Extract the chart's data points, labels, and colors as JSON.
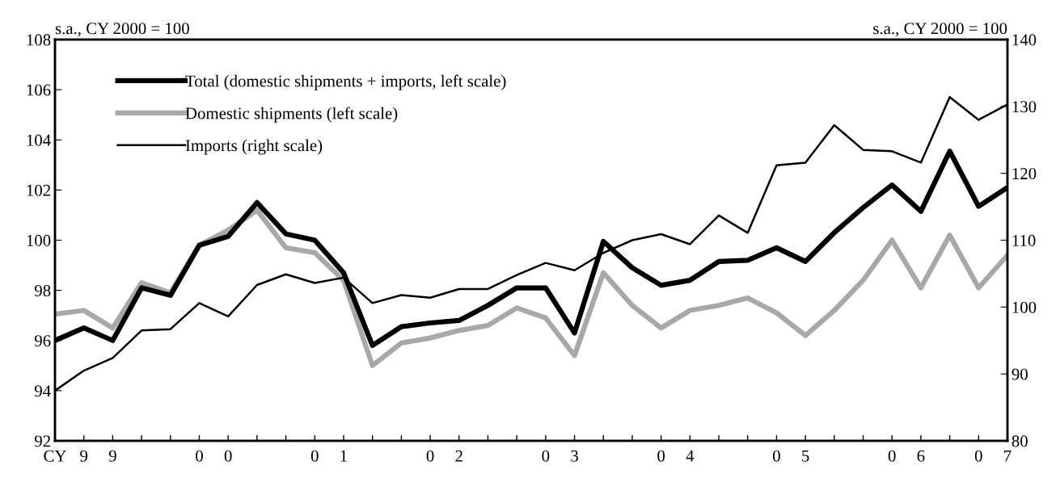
{
  "chart_data": {
    "type": "line",
    "ylabel": "s.a., CY 2000 = 100",
    "y2label": "s.a., CY 2000 = 100",
    "categories": [
      "CY",
      "9",
      "9",
      null,
      null,
      "0",
      "0",
      null,
      null,
      "0",
      "1",
      null,
      null,
      "0",
      "2",
      null,
      null,
      "0",
      "3",
      null,
      null,
      "0",
      "4",
      null,
      null,
      "0",
      "5",
      null,
      null,
      "0",
      "6",
      null,
      "0",
      "7"
    ],
    "series": [
      {
        "name": "Total (domestic shipments + imports, left scale)",
        "color": "#000000",
        "values": [
          96.0,
          96.5,
          96.0,
          98.1,
          97.8,
          99.8,
          100.15,
          101.5,
          100.25,
          100.0,
          98.7,
          95.8,
          96.55,
          96.7,
          96.8,
          97.4,
          98.1,
          98.1,
          96.3,
          99.95,
          98.9,
          98.2,
          98.4,
          99.15,
          99.2,
          99.7,
          99.15,
          100.3,
          101.3,
          102.2,
          101.15,
          103.55,
          101.35,
          102.1
        ]
      },
      {
        "name": "Domestic shipments (left scale)",
        "color": "#a8a8a8",
        "values": [
          97.05,
          97.2,
          96.5,
          98.3,
          97.9,
          99.8,
          100.4,
          101.2,
          99.7,
          99.5,
          98.4,
          95.0,
          95.9,
          96.1,
          96.4,
          96.6,
          97.3,
          96.9,
          95.4,
          98.7,
          97.4,
          96.5,
          97.2,
          97.4,
          97.7,
          97.1,
          96.2,
          97.2,
          98.4,
          100.0,
          98.1,
          100.2,
          98.1,
          99.4
        ]
      },
      {
        "name": "Imports (right scale)",
        "color": "#000000",
        "axis": "y2",
        "values": [
          87.5,
          90.5,
          92.4,
          96.5,
          96.7,
          100.6,
          98.6,
          103.3,
          104.9,
          103.6,
          104.4,
          100.6,
          101.8,
          101.4,
          102.7,
          102.7,
          104.8,
          106.6,
          105.5,
          108.1,
          110.0,
          110.9,
          109.4,
          113.7,
          111.1,
          121.2,
          121.6,
          127.2,
          123.5,
          123.3,
          121.6,
          131.4,
          128.0,
          130.3
        ]
      }
    ],
    "ylim": [
      92,
      108
    ],
    "yticks": [
      92,
      94,
      96,
      98,
      100,
      102,
      104,
      106,
      108
    ],
    "y2lim": [
      80,
      140
    ],
    "y2ticks": [
      80,
      90,
      100,
      110,
      120,
      130,
      140
    ],
    "legend": "top left",
    "grid": false
  }
}
